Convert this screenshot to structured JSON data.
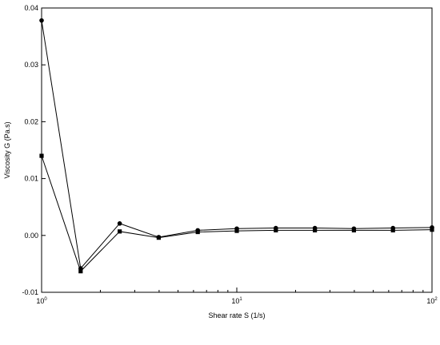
{
  "chart_data": {
    "type": "line",
    "title": "",
    "xlabel": "Shear rate  S  (1/s)",
    "ylabel": "Viscosity  G  (Pa.s)",
    "xscale": "log",
    "xlim": [
      1,
      100
    ],
    "ylim": [
      -0.01,
      0.04
    ],
    "x_ticks": [
      {
        "base": "10",
        "exp": "0",
        "value": 1
      },
      {
        "base": "10",
        "exp": "1",
        "value": 10
      },
      {
        "base": "10",
        "exp": "2",
        "value": 100
      }
    ],
    "y_ticks": [
      "-0.01",
      "0.00",
      "0.01",
      "0.02",
      "0.03",
      "0.04"
    ],
    "y_tick_values": [
      -0.01,
      0.0,
      0.01,
      0.02,
      0.03,
      0.04
    ],
    "grid": false,
    "legend": "none",
    "x": [
      1.0,
      1.585,
      2.512,
      3.981,
      6.31,
      10.0,
      15.85,
      25.12,
      39.81,
      63.1,
      100.0
    ],
    "series": [
      {
        "marker": "circle",
        "values": [
          0.0378,
          -0.0058,
          0.0021,
          -0.0003,
          0.0009,
          0.0012,
          0.0013,
          0.0013,
          0.0012,
          0.0013,
          0.0014
        ]
      },
      {
        "marker": "square",
        "values": [
          0.014,
          -0.0063,
          0.0007,
          -0.0004,
          0.0006,
          0.0008,
          0.0009,
          0.0009,
          0.0009,
          0.0009,
          0.001
        ]
      }
    ],
    "colors": {
      "line": "#000000",
      "axis": "#000000",
      "background": "#ffffff"
    }
  }
}
